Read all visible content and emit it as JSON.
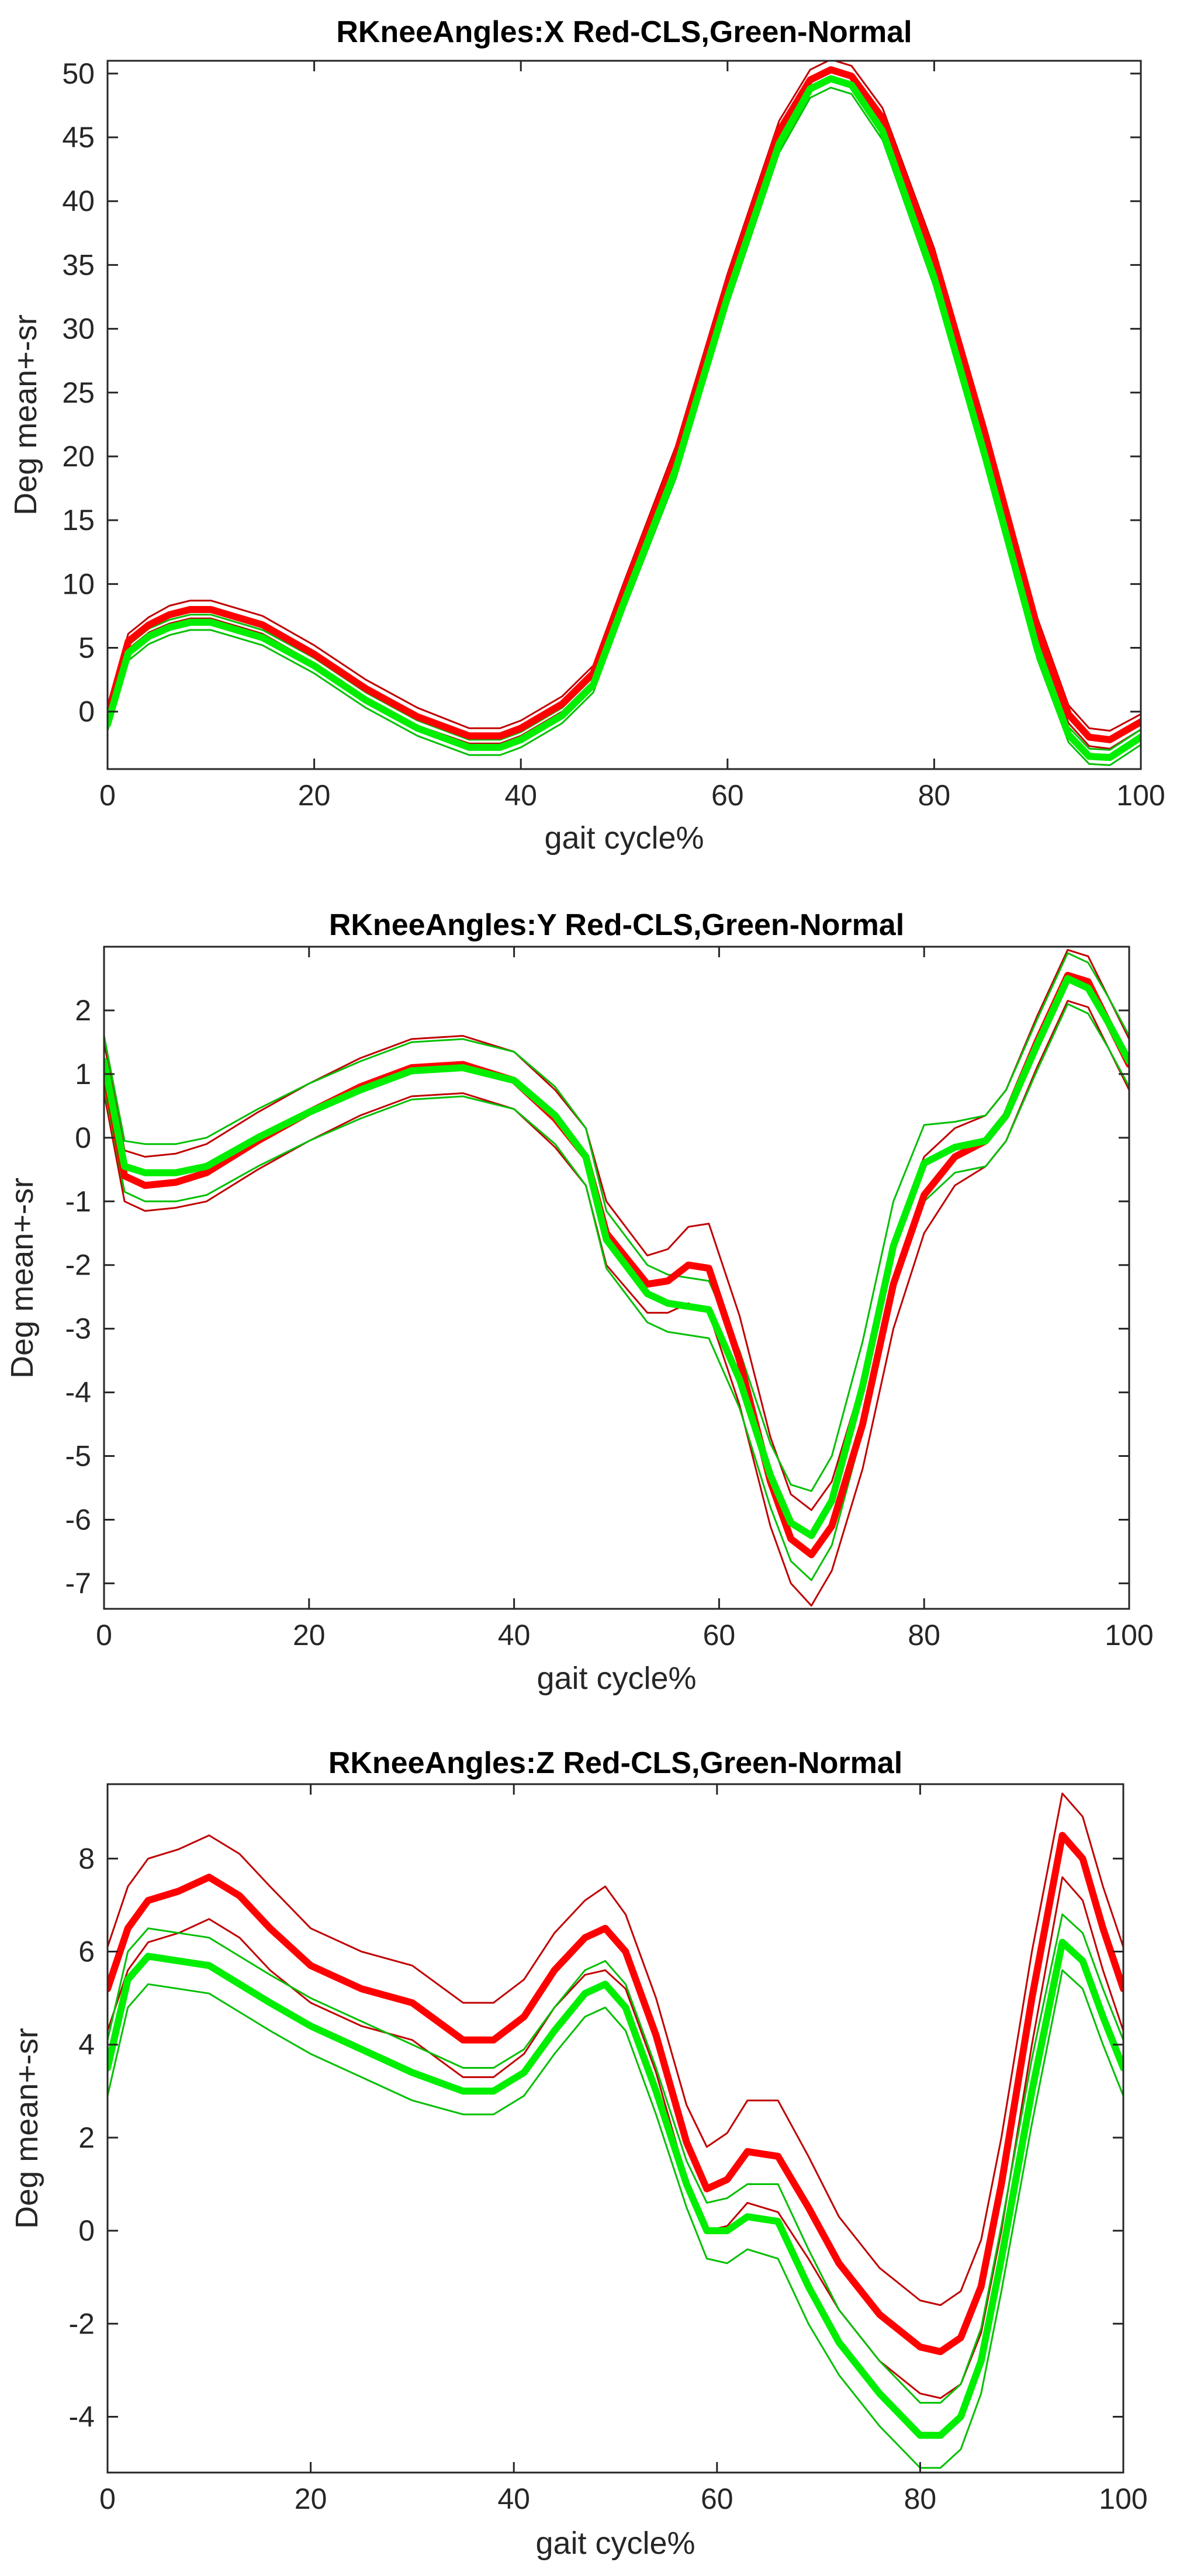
{
  "colors": {
    "cls": "#ff0000",
    "cls_band": "#c00000",
    "normal": "#00ee00",
    "normal_band": "#00c000",
    "axis": "#262626"
  },
  "chart_data": [
    {
      "type": "line",
      "title": "RKneeAngles:X Red-CLS,Green-Normal",
      "xlabel": "gait cycle%",
      "ylabel": "Deg mean+-sr",
      "xlim": [
        0,
        100
      ],
      "ylim": [
        -4.5,
        51
      ],
      "grid": false,
      "xticks": [
        "0",
        "20",
        "40",
        "60",
        "80",
        "100"
      ],
      "xtick_values": [
        0,
        20,
        40,
        60,
        80,
        100
      ],
      "yticks": [
        "0",
        "5",
        "10",
        "15",
        "20",
        "25",
        "30",
        "35",
        "40",
        "45",
        "50"
      ],
      "ytick_values": [
        0,
        5,
        10,
        15,
        20,
        25,
        30,
        35,
        40,
        45,
        50
      ],
      "x": [
        0,
        2,
        4,
        6,
        8,
        10,
        15,
        20,
        25,
        30,
        35,
        38,
        40,
        44,
        47,
        50,
        55,
        60,
        65,
        68,
        70,
        72,
        75,
        80,
        85,
        90,
        93,
        95,
        97,
        100
      ],
      "series": [
        {
          "name": "CLS mean",
          "color_key": "cls",
          "width": 12,
          "values": [
            -0.3,
            5.5,
            6.8,
            7.6,
            8.0,
            8.0,
            6.8,
            4.5,
            1.8,
            -0.4,
            -1.9,
            -1.9,
            -1.3,
            0.6,
            3.0,
            9.5,
            20.0,
            33.5,
            45.5,
            49.5,
            50.3,
            49.8,
            46.5,
            35.5,
            21.5,
            6.5,
            -0.2,
            -2.0,
            -2.2,
            -0.8
          ]
        },
        {
          "name": "CLS +sr",
          "color_key": "cls_band",
          "width": 3,
          "values": [
            0.2,
            6.1,
            7.4,
            8.3,
            8.7,
            8.7,
            7.5,
            5.2,
            2.5,
            0.3,
            -1.3,
            -1.3,
            -0.7,
            1.2,
            3.6,
            10.2,
            20.8,
            34.3,
            46.3,
            50.3,
            51.1,
            50.6,
            47.3,
            36.3,
            22.3,
            7.3,
            0.5,
            -1.3,
            -1.5,
            -0.2
          ]
        },
        {
          "name": "CLS -sr",
          "color_key": "cls_band",
          "width": 3,
          "values": [
            -0.8,
            4.9,
            6.2,
            6.9,
            7.3,
            7.3,
            6.1,
            3.8,
            1.1,
            -1.1,
            -2.5,
            -2.5,
            -1.9,
            0.0,
            2.4,
            8.8,
            19.2,
            32.7,
            44.7,
            48.7,
            49.5,
            49.0,
            45.7,
            34.7,
            20.7,
            5.7,
            -0.9,
            -2.7,
            -2.9,
            -1.4
          ]
        },
        {
          "name": "Normal mean",
          "color_key": "normal",
          "width": 12,
          "values": [
            -1.0,
            4.6,
            5.9,
            6.6,
            7.0,
            7.0,
            5.8,
            3.6,
            0.9,
            -1.3,
            -2.8,
            -2.8,
            -2.2,
            -0.3,
            2.1,
            8.6,
            19.0,
            32.5,
            44.5,
            48.8,
            49.6,
            49.1,
            45.5,
            34.0,
            19.8,
            4.8,
            -1.8,
            -3.5,
            -3.6,
            -2.0
          ]
        },
        {
          "name": "Normal +sr",
          "color_key": "normal_band",
          "width": 3,
          "values": [
            -0.5,
            5.2,
            6.5,
            7.2,
            7.6,
            7.6,
            6.4,
            4.2,
            1.5,
            -0.7,
            -2.2,
            -2.2,
            -1.6,
            0.3,
            2.7,
            9.2,
            19.7,
            33.2,
            45.2,
            49.5,
            50.3,
            49.8,
            46.2,
            34.7,
            20.5,
            5.5,
            -1.2,
            -2.9,
            -3.0,
            -1.4
          ]
        },
        {
          "name": "Normal -sr",
          "color_key": "normal_band",
          "width": 3,
          "values": [
            -1.5,
            4.0,
            5.3,
            6.0,
            6.4,
            6.4,
            5.2,
            3.0,
            0.3,
            -1.9,
            -3.4,
            -3.4,
            -2.8,
            -0.9,
            1.5,
            8.0,
            18.3,
            31.8,
            43.8,
            48.1,
            48.9,
            48.4,
            44.8,
            33.3,
            19.1,
            4.1,
            -2.4,
            -4.1,
            -4.2,
            -2.6
          ]
        }
      ]
    },
    {
      "type": "line",
      "title": "RKneeAngles:Y Red-CLS,Green-Normal",
      "xlabel": "gait cycle%",
      "ylabel": "Deg mean+-sr",
      "xlim": [
        0,
        100
      ],
      "ylim": [
        -7.4,
        3.0
      ],
      "grid": false,
      "xticks": [
        "0",
        "20",
        "40",
        "60",
        "80",
        "100"
      ],
      "xtick_values": [
        0,
        20,
        40,
        60,
        80,
        100
      ],
      "yticks": [
        "-7",
        "-6",
        "-5",
        "-4",
        "-3",
        "-2",
        "-1",
        "0",
        "1",
        "2"
      ],
      "ytick_values": [
        -7,
        -6,
        -5,
        -4,
        -3,
        -2,
        -1,
        0,
        1,
        2
      ],
      "x": [
        0,
        2,
        4,
        7,
        10,
        15,
        20,
        25,
        30,
        35,
        40,
        44,
        47,
        49,
        53,
        55,
        57,
        59,
        62,
        65,
        67,
        69,
        71,
        74,
        77,
        80,
        83,
        86,
        88,
        91,
        94,
        96,
        98,
        100
      ],
      "series": [
        {
          "name": "CLS mean",
          "color_key": "cls",
          "width": 12,
          "values": [
            1.1,
            -0.6,
            -0.75,
            -0.7,
            -0.55,
            -0.05,
            0.4,
            0.8,
            1.1,
            1.15,
            0.9,
            0.3,
            -0.3,
            -1.5,
            -2.3,
            -2.25,
            -2.0,
            -2.05,
            -3.5,
            -5.4,
            -6.3,
            -6.55,
            -6.1,
            -4.5,
            -2.3,
            -0.9,
            -0.3,
            -0.05,
            0.35,
            1.5,
            2.55,
            2.45,
            1.8,
            1.15
          ]
        },
        {
          "name": "CLS +sr",
          "color_key": "cls_band",
          "width": 3,
          "values": [
            1.5,
            -0.2,
            -0.3,
            -0.25,
            -0.1,
            0.4,
            0.85,
            1.25,
            1.55,
            1.6,
            1.35,
            0.75,
            0.15,
            -1.0,
            -1.85,
            -1.75,
            -1.4,
            -1.35,
            -2.8,
            -4.7,
            -5.6,
            -5.85,
            -5.4,
            -3.8,
            -1.6,
            -0.3,
            0.15,
            0.35,
            0.75,
            1.9,
            2.95,
            2.85,
            2.2,
            1.55
          ]
        },
        {
          "name": "CLS -sr",
          "color_key": "cls_band",
          "width": 3,
          "values": [
            0.7,
            -1.0,
            -1.15,
            -1.1,
            -1.0,
            -0.5,
            -0.05,
            0.35,
            0.65,
            0.7,
            0.45,
            -0.15,
            -0.75,
            -2.0,
            -2.75,
            -2.75,
            -2.6,
            -2.75,
            -4.2,
            -6.1,
            -7.0,
            -7.35,
            -6.8,
            -5.2,
            -3.0,
            -1.5,
            -0.75,
            -0.45,
            -0.05,
            1.1,
            2.15,
            2.05,
            1.4,
            0.75
          ]
        },
        {
          "name": "Normal mean",
          "color_key": "normal",
          "width": 12,
          "values": [
            1.2,
            -0.45,
            -0.55,
            -0.55,
            -0.45,
            0.0,
            0.4,
            0.75,
            1.05,
            1.1,
            0.9,
            0.35,
            -0.3,
            -1.6,
            -2.45,
            -2.6,
            -2.65,
            -2.7,
            -3.8,
            -5.3,
            -6.05,
            -6.25,
            -5.7,
            -3.9,
            -1.7,
            -0.4,
            -0.15,
            -0.05,
            0.35,
            1.45,
            2.5,
            2.35,
            1.8,
            1.2
          ]
        },
        {
          "name": "Normal +sr",
          "color_key": "normal_band",
          "width": 3,
          "values": [
            1.6,
            -0.05,
            -0.1,
            -0.1,
            0.0,
            0.45,
            0.85,
            1.2,
            1.5,
            1.55,
            1.35,
            0.8,
            0.15,
            -1.15,
            -2.0,
            -2.15,
            -2.2,
            -2.25,
            -3.35,
            -4.8,
            -5.45,
            -5.55,
            -5.0,
            -3.2,
            -1.0,
            0.2,
            0.25,
            0.35,
            0.75,
            1.85,
            2.9,
            2.75,
            2.2,
            1.6
          ]
        },
        {
          "name": "Normal -sr",
          "color_key": "normal_band",
          "width": 3,
          "values": [
            0.8,
            -0.85,
            -1.0,
            -1.0,
            -0.9,
            -0.45,
            -0.05,
            0.3,
            0.6,
            0.65,
            0.45,
            -0.1,
            -0.75,
            -2.05,
            -2.9,
            -3.05,
            -3.1,
            -3.15,
            -4.25,
            -5.8,
            -6.65,
            -6.95,
            -6.4,
            -4.6,
            -2.4,
            -1.0,
            -0.55,
            -0.45,
            -0.05,
            1.05,
            2.1,
            1.95,
            1.4,
            0.8
          ]
        }
      ]
    },
    {
      "type": "line",
      "title": "RKneeAngles:Z Red-CLS,Green-Normal",
      "xlabel": "gait cycle%",
      "ylabel": "Deg mean+-sr",
      "xlim": [
        0,
        100
      ],
      "ylim": [
        -5.2,
        9.6
      ],
      "grid": false,
      "xticks": [
        "0",
        "20",
        "40",
        "60",
        "80",
        "100"
      ],
      "xtick_values": [
        0,
        20,
        40,
        60,
        80,
        100
      ],
      "yticks": [
        "-4",
        "-2",
        "0",
        "2",
        "4",
        "6",
        "8"
      ],
      "ytick_values": [
        -4,
        -2,
        0,
        2,
        4,
        6,
        8
      ],
      "x": [
        0,
        2,
        4,
        7,
        10,
        13,
        16,
        20,
        25,
        30,
        35,
        38,
        41,
        44,
        47,
        49,
        51,
        54,
        57,
        59,
        61,
        63,
        66,
        69,
        72,
        76,
        80,
        82,
        84,
        86,
        88,
        91,
        94,
        96,
        98,
        100
      ],
      "series": [
        {
          "name": "CLS mean",
          "color_key": "cls",
          "width": 12,
          "values": [
            5.2,
            6.5,
            7.1,
            7.3,
            7.6,
            7.2,
            6.5,
            5.7,
            5.2,
            4.9,
            4.1,
            4.1,
            4.6,
            5.6,
            6.3,
            6.5,
            6.0,
            4.2,
            1.9,
            0.9,
            1.1,
            1.7,
            1.6,
            0.5,
            -0.7,
            -1.8,
            -2.5,
            -2.6,
            -2.3,
            -1.2,
            1.0,
            5.0,
            8.5,
            8.0,
            6.5,
            5.2
          ]
        },
        {
          "name": "CLS +sr",
          "color_key": "cls_band",
          "width": 3,
          "values": [
            6.1,
            7.4,
            8.0,
            8.2,
            8.5,
            8.1,
            7.4,
            6.5,
            6.0,
            5.7,
            4.9,
            4.9,
            5.4,
            6.4,
            7.1,
            7.4,
            6.8,
            5.0,
            2.7,
            1.8,
            2.1,
            2.8,
            2.8,
            1.6,
            0.3,
            -0.8,
            -1.5,
            -1.6,
            -1.3,
            -0.2,
            2.0,
            6.0,
            9.4,
            8.9,
            7.4,
            6.1
          ]
        },
        {
          "name": "CLS -sr",
          "color_key": "cls_band",
          "width": 3,
          "values": [
            4.3,
            5.6,
            6.2,
            6.4,
            6.7,
            6.3,
            5.6,
            4.9,
            4.4,
            4.1,
            3.3,
            3.3,
            3.8,
            4.8,
            5.5,
            5.6,
            5.2,
            3.4,
            1.1,
            0.0,
            0.1,
            0.6,
            0.4,
            -0.6,
            -1.7,
            -2.8,
            -3.5,
            -3.6,
            -3.3,
            -2.2,
            0.0,
            4.0,
            7.6,
            7.1,
            5.6,
            4.3
          ]
        },
        {
          "name": "Normal mean",
          "color_key": "normal",
          "width": 12,
          "values": [
            3.5,
            5.4,
            5.9,
            5.8,
            5.7,
            5.3,
            4.9,
            4.4,
            3.9,
            3.4,
            3.0,
            3.0,
            3.4,
            4.3,
            5.1,
            5.3,
            4.8,
            3.0,
            1.0,
            0.0,
            0.0,
            0.3,
            0.2,
            -1.2,
            -2.4,
            -3.5,
            -4.4,
            -4.4,
            -4.0,
            -2.8,
            -0.6,
            3.0,
            6.2,
            5.8,
            4.6,
            3.5
          ]
        },
        {
          "name": "Normal +sr",
          "color_key": "normal_band",
          "width": 3,
          "values": [
            4.1,
            6.0,
            6.5,
            6.4,
            6.3,
            5.9,
            5.5,
            5.0,
            4.5,
            4.0,
            3.5,
            3.5,
            3.9,
            4.8,
            5.6,
            5.8,
            5.3,
            3.5,
            1.5,
            0.6,
            0.7,
            1.0,
            1.0,
            -0.4,
            -1.7,
            -2.8,
            -3.7,
            -3.7,
            -3.3,
            -2.1,
            0.1,
            3.7,
            6.8,
            6.4,
            5.2,
            4.1
          ]
        },
        {
          "name": "Normal -sr",
          "color_key": "normal_band",
          "width": 3,
          "values": [
            2.9,
            4.8,
            5.3,
            5.2,
            5.1,
            4.7,
            4.3,
            3.8,
            3.3,
            2.8,
            2.5,
            2.5,
            2.9,
            3.8,
            4.6,
            4.8,
            4.3,
            2.5,
            0.5,
            -0.6,
            -0.7,
            -0.4,
            -0.6,
            -2.0,
            -3.1,
            -4.2,
            -5.1,
            -5.1,
            -4.7,
            -3.5,
            -1.3,
            2.3,
            5.6,
            5.2,
            4.0,
            2.9
          ]
        }
      ]
    }
  ]
}
